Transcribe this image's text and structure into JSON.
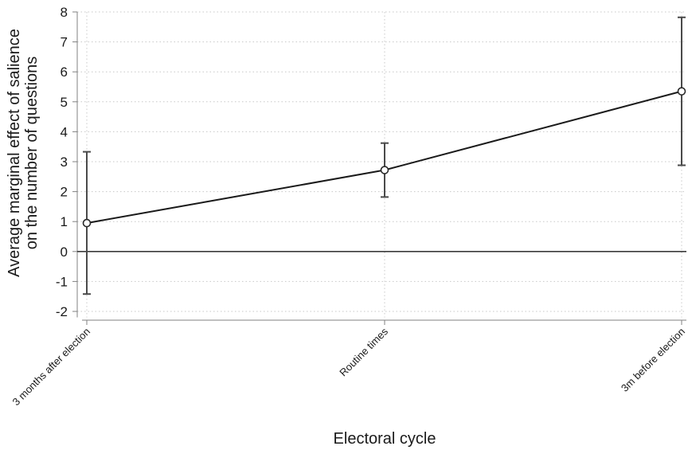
{
  "chart_data": {
    "type": "line",
    "title": "",
    "xlabel": "Electoral cycle",
    "ylabel_lines": [
      "Average marginal effect of salience",
      "on the number of questions"
    ],
    "categories": [
      "3 months after election",
      "Routine times",
      "3m before election"
    ],
    "series": [
      {
        "values": [
          0.95,
          2.72,
          5.35
        ],
        "ci_low": [
          -1.42,
          1.82,
          2.88
        ],
        "ci_high": [
          3.33,
          3.62,
          7.82
        ]
      }
    ],
    "yticks": [
      -2,
      -1,
      0,
      1,
      2,
      3,
      4,
      5,
      6,
      7,
      8
    ],
    "ylim": [
      -2.2,
      8
    ],
    "reference_line": 0,
    "grid": true,
    "colors": {
      "line": "#1a1a1a",
      "grid": "#c8c8c8",
      "axis": "#808080"
    }
  }
}
